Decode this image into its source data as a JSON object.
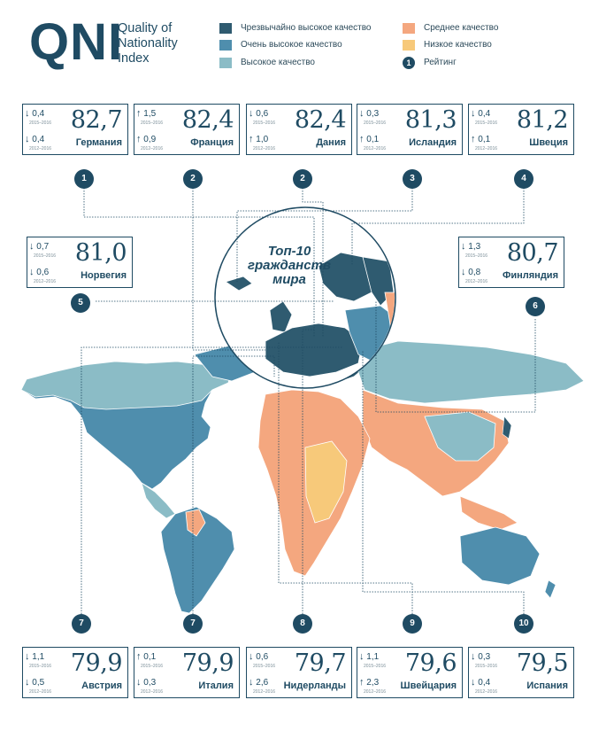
{
  "logo": {
    "letters": "QNI",
    "line1": "Quality of",
    "line2": "Nationality",
    "line3": "Index"
  },
  "legend": [
    {
      "label": "Чрезвычайно высокое качество",
      "color": "#2f5b70"
    },
    {
      "label": "Очень высокое качество",
      "color": "#4f8ead"
    },
    {
      "label": "Высокое качество",
      "color": "#8bbcc6"
    },
    {
      "label": "Среднее качество",
      "color": "#f4a77f"
    },
    {
      "label": "Низкое качество",
      "color": "#f7c97a"
    },
    {
      "label": "Рейтинг",
      "rank": "1"
    }
  ],
  "map_title": {
    "line1": "Топ-10",
    "line2": "гражданств",
    "line3": "мира"
  },
  "year_labels": {
    "a": "2015–2016",
    "b": "2012–2016"
  },
  "countries": [
    {
      "name": "Германия",
      "score": "82,7",
      "rank": "1",
      "c1_arrow": "↓",
      "c1": "0,4",
      "c2_arrow": "↓",
      "c2": "0,4"
    },
    {
      "name": "Франция",
      "score": "82,4",
      "rank": "2",
      "c1_arrow": "↑",
      "c1": "1,5",
      "c2_arrow": "↑",
      "c2": "0,9"
    },
    {
      "name": "Дания",
      "score": "82,4",
      "rank": "2",
      "c1_arrow": "↓",
      "c1": "0,6",
      "c2_arrow": "↑",
      "c2": "1,0"
    },
    {
      "name": "Исландия",
      "score": "81,3",
      "rank": "3",
      "c1_arrow": "↓",
      "c1": "0,3",
      "c2_arrow": "↑",
      "c2": "0,1"
    },
    {
      "name": "Швеция",
      "score": "81,2",
      "rank": "4",
      "c1_arrow": "↓",
      "c1": "0,4",
      "c2_arrow": "↑",
      "c2": "0,1"
    },
    {
      "name": "Норвегия",
      "score": "81,0",
      "rank": "5",
      "c1_arrow": "↓",
      "c1": "0,7",
      "c2_arrow": "↓",
      "c2": "0,6"
    },
    {
      "name": "Финляндия",
      "score": "80,7",
      "rank": "6",
      "c1_arrow": "↓",
      "c1": "1,3",
      "c2_arrow": "↓",
      "c2": "0,8"
    },
    {
      "name": "Австрия",
      "score": "79,9",
      "rank": "7",
      "c1_arrow": "↓",
      "c1": "1,1",
      "c2_arrow": "↓",
      "c2": "0,5"
    },
    {
      "name": "Италия",
      "score": "79,9",
      "rank": "7",
      "c1_arrow": "↑",
      "c1": "0,1",
      "c2_arrow": "↓",
      "c2": "0,3"
    },
    {
      "name": "Нидерланды",
      "score": "79,7",
      "rank": "8",
      "c1_arrow": "↓",
      "c1": "0,6",
      "c2_arrow": "↓",
      "c2": "2,6"
    },
    {
      "name": "Швейцария",
      "score": "79,6",
      "rank": "9",
      "c1_arrow": "↓",
      "c1": "1,1",
      "c2_arrow": "↑",
      "c2": "2,3"
    },
    {
      "name": "Испания",
      "score": "79,5",
      "rank": "10",
      "c1_arrow": "↓",
      "c1": "0,3",
      "c2_arrow": "↓",
      "c2": "0,4"
    }
  ]
}
